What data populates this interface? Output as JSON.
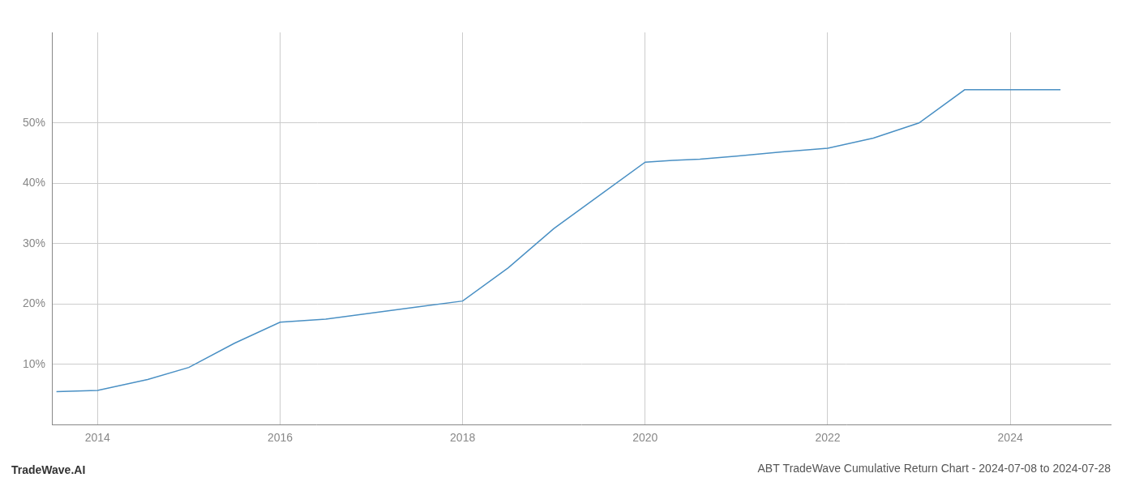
{
  "chart_data": {
    "type": "line",
    "title": "ABT TradeWave Cumulative Return Chart - 2024-07-08 to 2024-07-28",
    "annotations": [
      "TradeWave.AI"
    ],
    "x": [
      2013.55,
      2014.0,
      2014.55,
      2015.0,
      2015.5,
      2016.0,
      2016.5,
      2017.0,
      2017.5,
      2018.0,
      2018.5,
      2019.0,
      2019.5,
      2020.0,
      2020.3,
      2020.6,
      2021.0,
      2021.5,
      2022.0,
      2022.5,
      2023.0,
      2023.5,
      2024.0,
      2024.55
    ],
    "values": [
      5.5,
      5.7,
      7.5,
      9.5,
      13.5,
      17.0,
      17.5,
      18.5,
      19.5,
      20.5,
      26.0,
      32.5,
      38.0,
      43.5,
      43.8,
      44.0,
      44.5,
      45.2,
      45.8,
      47.5,
      50.0,
      55.5,
      55.5,
      55.5
    ],
    "color": "#4a90c4",
    "xlim": [
      2013.5,
      2025.1
    ],
    "ylim": [
      0,
      65
    ],
    "xticks": [
      2014,
      2016,
      2018,
      2020,
      2022,
      2024
    ],
    "yticks": [
      {
        "value": 10,
        "label": "10%"
      },
      {
        "value": 20,
        "label": "20%"
      },
      {
        "value": 30,
        "label": "30%"
      },
      {
        "value": 40,
        "label": "40%"
      },
      {
        "value": 50,
        "label": "50%"
      }
    ],
    "grid": true
  }
}
